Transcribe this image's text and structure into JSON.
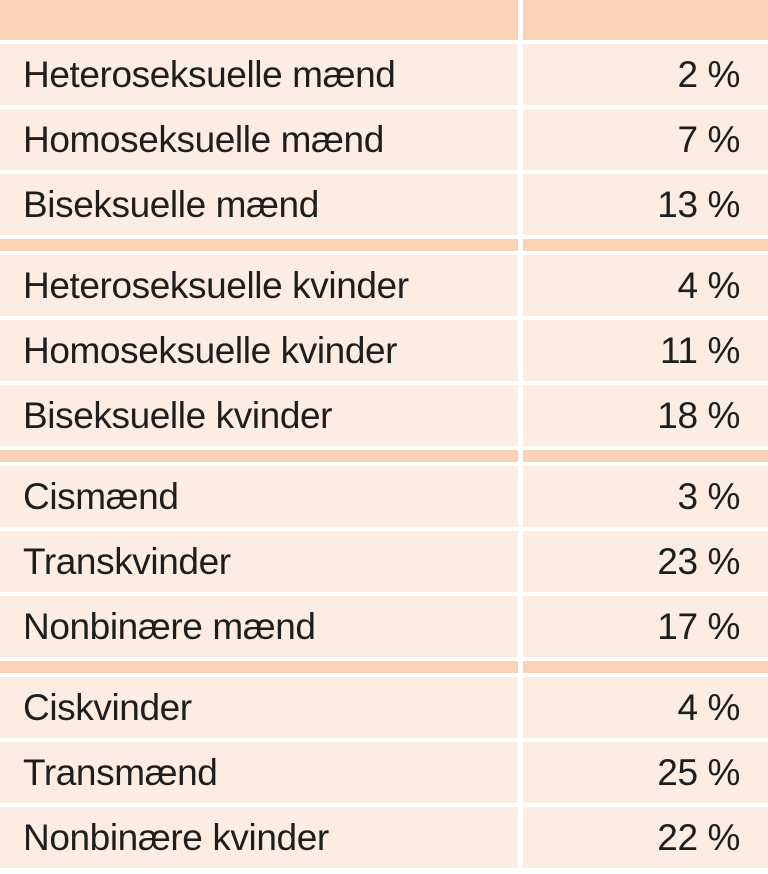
{
  "table": {
    "header": {
      "label": "",
      "value": ""
    },
    "groups": [
      {
        "rows": [
          {
            "label": "Heteroseksuelle mænd",
            "value": "2 %"
          },
          {
            "label": "Homoseksuelle mænd",
            "value": "7 %"
          },
          {
            "label": "Biseksuelle mænd",
            "value": "13 %"
          }
        ]
      },
      {
        "rows": [
          {
            "label": "Heteroseksuelle kvinder",
            "value": "4 %"
          },
          {
            "label": "Homoseksuelle kvinder",
            "value": "11 %"
          },
          {
            "label": "Biseksuelle kvinder",
            "value": "18 %"
          }
        ]
      },
      {
        "rows": [
          {
            "label": "Cismænd",
            "value": "3 %"
          },
          {
            "label": "Transkvinder",
            "value": "23 %"
          },
          {
            "label": "Nonbinære mænd",
            "value": "17 %"
          }
        ]
      },
      {
        "rows": [
          {
            "label": "Ciskvinder",
            "value": "4 %"
          },
          {
            "label": "Transmænd",
            "value": "25 %"
          },
          {
            "label": "Nonbinære kvinder",
            "value": "22 %"
          }
        ]
      }
    ],
    "colors": {
      "band": "#fbd3b4",
      "row_bg": "#fcece1",
      "gap": "#ffffff",
      "text": "#1e1e1e"
    }
  },
  "chart_data": {
    "type": "table",
    "title": "",
    "columns": [
      "",
      ""
    ],
    "unit": "%",
    "groups": [
      {
        "rows": [
          {
            "label": "Heteroseksuelle mænd",
            "value": 2
          },
          {
            "label": "Homoseksuelle mænd",
            "value": 7
          },
          {
            "label": "Biseksuelle mænd",
            "value": 13
          }
        ]
      },
      {
        "rows": [
          {
            "label": "Heteroseksuelle kvinder",
            "value": 4
          },
          {
            "label": "Homoseksuelle kvinder",
            "value": 11
          },
          {
            "label": "Biseksuelle kvinder",
            "value": 18
          }
        ]
      },
      {
        "rows": [
          {
            "label": "Cismænd",
            "value": 3
          },
          {
            "label": "Transkvinder",
            "value": 23
          },
          {
            "label": "Nonbinære mænd",
            "value": 17
          }
        ]
      },
      {
        "rows": [
          {
            "label": "Ciskvinder",
            "value": 4
          },
          {
            "label": "Transmænd",
            "value": 25
          },
          {
            "label": "Nonbinære kvinder",
            "value": 22
          }
        ]
      }
    ]
  }
}
